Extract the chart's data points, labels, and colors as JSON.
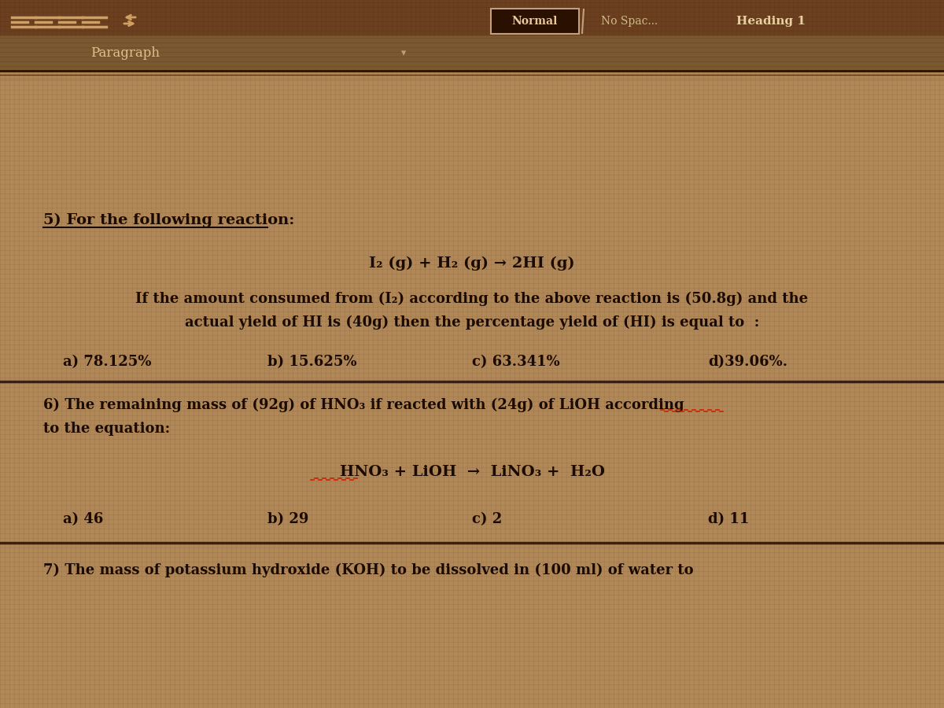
{
  "bg_color_light": "#c8a878",
  "bg_color_dark": "#8b6040",
  "bg_color_mid": "#b08858",
  "toolbar_bg": "#7a5838",
  "para_bar_bg": "#9a7850",
  "text_color": "#1a0a00",
  "divider_color": "#3a2010",
  "title_bar_text": "Heading 1",
  "paragraph_label": "Paragraph",
  "q5_header": "5) For the following reaction:",
  "q5_equation": "I₂ (g) + H₂ (g) → 2HI (g)",
  "q5_body1": "If the amount consumed from (I₂) according to the above reaction is (50.8g) and the",
  "q5_body2": "actual yield of HI is (40g) then the percentage yield of (HI) is equal to  :",
  "q5_a": "a) 78.125%",
  "q5_b": "b) 15.625%",
  "q5_c": "c) 63.341%",
  "q5_d": "d)39.06%.",
  "q6_header": "6) The remaining mass of (92g) of HNO₃ if reacted with (24g) of LiOH according",
  "q6_header2": "to the equation:",
  "q6_equation": "HNO₃ + LiOH  →  LiNO₃ +  H₂O",
  "q6_a": "a) 46",
  "q6_b": "b) 29",
  "q6_c": "c) 2",
  "q6_d": "d) 11",
  "q7_text": "7) The mass of potassium hydroxide (KOH) to be dissolved in (100 ml) of water to",
  "normal_box_color": "#3a2010",
  "grid_color1": "#c09060",
  "grid_color2": "#a07840"
}
